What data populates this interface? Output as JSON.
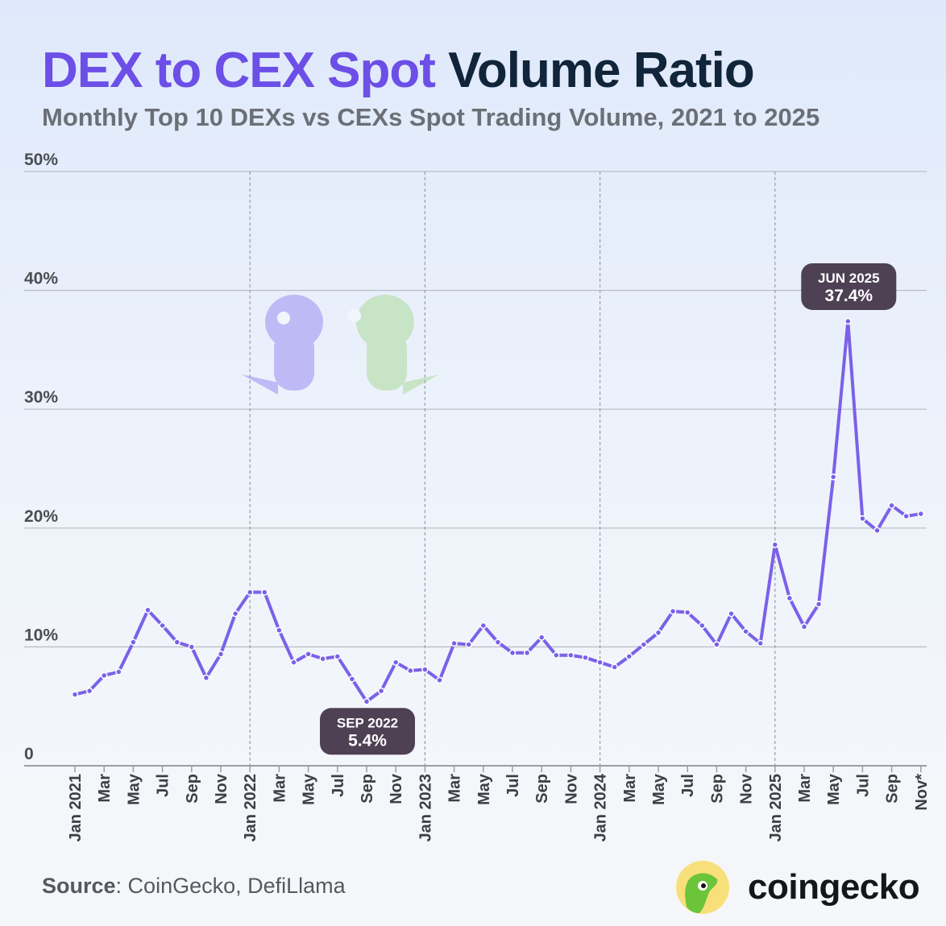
{
  "title": {
    "highlight": "DEX to CEX Spot",
    "rest": "Volume Ratio"
  },
  "subtitle": "Monthly Top 10 DEXs vs CEXs Spot Trading Volume, 2021 to 2025",
  "source": {
    "label": "Source",
    "text": ": CoinGecko, DefiLlama"
  },
  "brand": {
    "name": "coingecko"
  },
  "colors": {
    "line": "#7b61e8",
    "title_accent": "#6b4fe6",
    "title_dark": "#10243a",
    "callout_bg": "#4e4154"
  },
  "chart_data": {
    "type": "line",
    "title": "DEX to CEX Spot Volume Ratio",
    "ylim": [
      0,
      50
    ],
    "yticks": [
      0,
      10,
      20,
      30,
      40,
      50
    ],
    "ytick_labels": [
      "0",
      "10%",
      "20%",
      "30%",
      "40%",
      "50%"
    ],
    "grid": "horizontal, dashed vertical year separators",
    "x": [
      "Jan 2021",
      "Feb 2021",
      "Mar 2021",
      "Apr 2021",
      "May 2021",
      "Jun 2021",
      "Jul 2021",
      "Aug 2021",
      "Sep 2021",
      "Oct 2021",
      "Nov 2021",
      "Dec 2021",
      "Jan 2022",
      "Feb 2022",
      "Mar 2022",
      "Apr 2022",
      "May 2022",
      "Jun 2022",
      "Jul 2022",
      "Aug 2022",
      "Sep 2022",
      "Oct 2022",
      "Nov 2022",
      "Dec 2022",
      "Jan 2023",
      "Feb 2023",
      "Mar 2023",
      "Apr 2023",
      "May 2023",
      "Jun 2023",
      "Jul 2023",
      "Aug 2023",
      "Sep 2023",
      "Oct 2023",
      "Nov 2023",
      "Dec 2023",
      "Jan 2024",
      "Feb 2024",
      "Mar 2024",
      "Apr 2024",
      "May 2024",
      "Jun 2024",
      "Jul 2024",
      "Aug 2024",
      "Sep 2024",
      "Oct 2024",
      "Nov 2024",
      "Dec 2024",
      "Jan 2025",
      "Feb 2025",
      "Mar 2025",
      "Apr 2025",
      "May 2025",
      "Jun 2025",
      "Jul 2025",
      "Aug 2025",
      "Sep 2025",
      "Oct 2025",
      "Nov 2025"
    ],
    "xtick_labels": [
      "Jan 2021",
      "Mar",
      "May",
      "Jul",
      "Sep",
      "Nov",
      "Jan 2022",
      "Mar",
      "May",
      "Jul",
      "Sep",
      "Nov",
      "Jan 2023",
      "Mar",
      "May",
      "Jul",
      "Sep",
      "Nov",
      "Jan 2024",
      "Mar",
      "May",
      "Jul",
      "Sep",
      "Nov",
      "Jan 2025",
      "Mar",
      "May",
      "Jul",
      "Sep",
      "Nov*"
    ],
    "values": [
      6.0,
      6.3,
      7.6,
      7.9,
      10.4,
      13.1,
      11.8,
      10.4,
      10.0,
      7.4,
      9.4,
      12.8,
      14.6,
      14.6,
      11.4,
      8.7,
      9.4,
      9.0,
      9.2,
      7.3,
      5.4,
      6.3,
      8.7,
      8.0,
      8.1,
      7.2,
      10.3,
      10.2,
      11.8,
      10.4,
      9.5,
      9.5,
      10.8,
      9.3,
      9.3,
      9.1,
      8.7,
      8.3,
      9.2,
      10.2,
      11.2,
      13.0,
      12.9,
      11.8,
      10.2,
      12.8,
      11.3,
      10.3,
      18.6,
      14.1,
      11.7,
      13.6,
      24.3,
      37.4,
      20.8,
      19.8,
      21.9,
      21.0,
      21.2
    ],
    "annotations": [
      {
        "index": 53,
        "label": "JUN 2025",
        "value_label": "37.4%"
      },
      {
        "index": 20,
        "label": "SEP 2022",
        "value_label": "5.4%"
      }
    ]
  }
}
